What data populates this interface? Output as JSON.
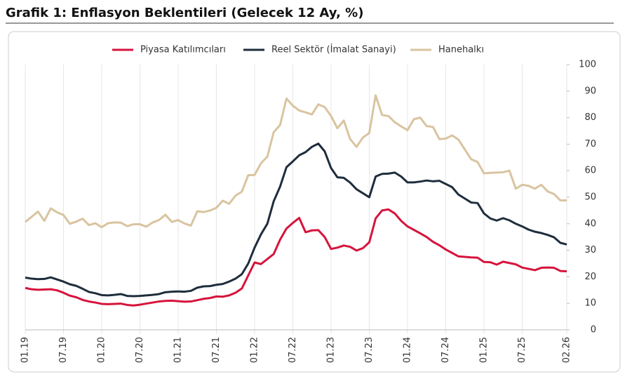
{
  "chart_data": {
    "type": "line",
    "title": "Grafik 1: Enflasyon Beklentileri (Gelecek 12 Ay, %)",
    "categories": [
      "01.19",
      null,
      null,
      null,
      null,
      null,
      "07.19",
      null,
      null,
      null,
      null,
      null,
      "01.20",
      null,
      null,
      null,
      null,
      null,
      "07.20",
      null,
      null,
      null,
      null,
      null,
      "01.21",
      null,
      null,
      null,
      null,
      null,
      "07.21",
      null,
      null,
      null,
      null,
      null,
      "01.22",
      null,
      null,
      null,
      null,
      null,
      "07.22",
      null,
      null,
      null,
      null,
      null,
      "01.23",
      null,
      null,
      null,
      null,
      null,
      "07.23",
      null,
      null,
      null,
      null,
      null,
      "01.24",
      null,
      null,
      null,
      null,
      null,
      "07.24",
      null,
      null,
      null,
      null,
      null,
      "01.25",
      null,
      null,
      null,
      null,
      null,
      "07.25",
      null,
      null,
      null,
      null,
      null,
      null,
      "02.26"
    ],
    "series": [
      {
        "name": "Piyasa Katılımcıları",
        "color": "#d6143c",
        "values": [
          15.8,
          15.3,
          15.1,
          15.2,
          15.3,
          14.9,
          14.0,
          12.9,
          12.3,
          11.3,
          10.7,
          10.3,
          9.8,
          9.7,
          9.8,
          9.9,
          9.4,
          9.2,
          9.5,
          9.9,
          10.3,
          10.7,
          10.9,
          11.0,
          10.8,
          10.6,
          10.7,
          11.2,
          11.7,
          12.0,
          12.6,
          12.5,
          13.0,
          14.0,
          15.6,
          20.5,
          25.4,
          24.8,
          26.7,
          28.6,
          34,
          38.2,
          40.3,
          42.2,
          36.8,
          37.5,
          37.6,
          35.0,
          30.5,
          31.0,
          31.8,
          31.3,
          29.9,
          30.8,
          33.0,
          42.0,
          45.0,
          45.4,
          43.9,
          41.1,
          39.0,
          37.7,
          36.4,
          35.0,
          33.2,
          31.9,
          30.3,
          29.0,
          27.7,
          27.5,
          27.3,
          27.2,
          25.6,
          25.5,
          24.6,
          25.7,
          25.2,
          24.7,
          23.5,
          23.0,
          22.5,
          23.4,
          23.5,
          23.4,
          22.2,
          22.1
        ]
      },
      {
        "name": "Reel Sektör (İmalat Sanayi)",
        "color": "#1e2d3d",
        "values": [
          19.7,
          19.3,
          19.1,
          19.2,
          19.8,
          19.0,
          18.2,
          17.2,
          16.6,
          15.5,
          14.3,
          13.8,
          13.1,
          13.0,
          13.2,
          13.5,
          12.8,
          12.7,
          12.8,
          13.0,
          13.2,
          13.5,
          14.2,
          14.4,
          14.5,
          14.4,
          14.7,
          15.9,
          16.4,
          16.5,
          17.0,
          17.3,
          18.2,
          19.3,
          21.0,
          25.0,
          31.0,
          36.0,
          40.0,
          48.5,
          54,
          61.3,
          63.5,
          65.8,
          67.0,
          69.0,
          70.2,
          67.3,
          61.0,
          57.5,
          57.3,
          55.5,
          53.0,
          51.5,
          50.0,
          57.8,
          58.8,
          58.9,
          59.3,
          57.8,
          55.6,
          55.6,
          55.9,
          56.3,
          56.0,
          56.2,
          55.0,
          53.8,
          51.0,
          49.5,
          48.0,
          47.8,
          43.9,
          42.0,
          41.2,
          42.1,
          41.3,
          40.0,
          39.0,
          37.8,
          37.0,
          36.5,
          35.8,
          34.9,
          32.8,
          32.2
        ]
      },
      {
        "name": "Hanehalkı",
        "color": "#d9c4a0",
        "values": [
          40.7,
          42.6,
          44.6,
          41.1,
          45.8,
          44.3,
          43.3,
          40.0,
          40.8,
          41.9,
          39.5,
          40.2,
          38.7,
          40.2,
          40.5,
          40.4,
          39.1,
          39.8,
          39.8,
          38.9,
          40.5,
          41.4,
          43.4,
          40.7,
          41.4,
          40.1,
          39.3,
          44.7,
          44.4,
          45.0,
          46.0,
          48.7,
          47.5,
          50.6,
          52.1,
          58.3,
          58.4,
          62.8,
          65.3,
          74.5,
          77.2,
          87.2,
          84.5,
          82.7,
          82.0,
          81.2,
          85.0,
          84.0,
          80.6,
          76.0,
          78.9,
          71.9,
          69.0,
          72.5,
          74.2,
          88.4,
          81.0,
          80.6,
          78.3,
          76.7,
          75.3,
          79.4,
          80.0,
          76.8,
          76.5,
          71.9,
          72.1,
          73.3,
          71.7,
          68.0,
          64.3,
          63.3,
          59.0,
          59.2,
          59.3,
          59.4,
          60.0,
          53.2,
          54.7,
          54.3,
          53.2,
          54.7,
          52.2,
          51.2,
          48.8,
          48.8
        ]
      }
    ],
    "ylim": [
      0,
      100
    ],
    "yticks": [
      0,
      10,
      20,
      30,
      40,
      50,
      60,
      70,
      80,
      90,
      100
    ]
  }
}
